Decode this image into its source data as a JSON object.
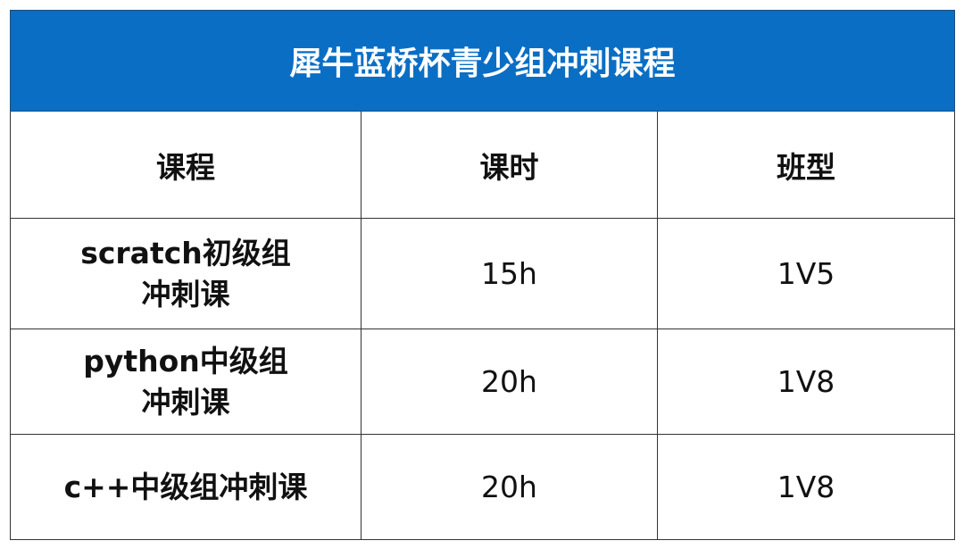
{
  "title": "犀牛蓝桥杯青少组冲刺课程",
  "colors": {
    "header_bg": "#0a6ec4",
    "header_text": "#ffffff"
  },
  "columns": [
    "课程",
    "课时",
    "班型"
  ],
  "rows": [
    {
      "course_line1": "scratch初级组",
      "course_line2": "冲刺课",
      "hours": "15h",
      "class_type": "1V5"
    },
    {
      "course_line1": "python中级组",
      "course_line2": "冲刺课",
      "hours": "20h",
      "class_type": "1V8"
    },
    {
      "course_line1": "c++中级组冲刺课",
      "course_line2": "",
      "hours": "20h",
      "class_type": "1V8"
    }
  ]
}
